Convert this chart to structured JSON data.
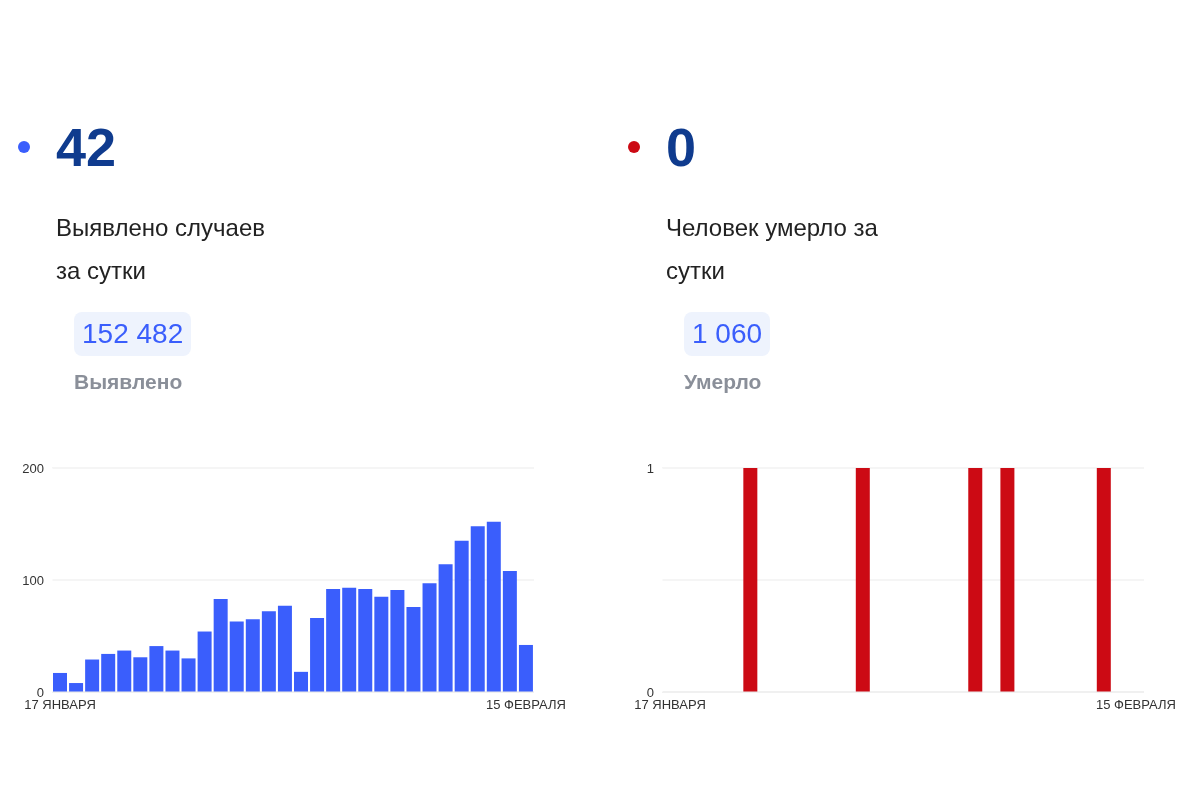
{
  "chart_data": [
    {
      "type": "bar",
      "title": "42",
      "subtitle": "Выявлено случаев за сутки",
      "annotations": [
        "152 482",
        "Выявлено"
      ],
      "categories": [
        "17 ЯНВАРЯ",
        null,
        null,
        null,
        null,
        null,
        null,
        null,
        null,
        null,
        null,
        null,
        null,
        null,
        null,
        null,
        null,
        null,
        null,
        null,
        null,
        null,
        null,
        null,
        null,
        null,
        null,
        null,
        null,
        "15 ФЕВРАЛЯ"
      ],
      "series": [
        {
          "color": "#3a5efc",
          "values": [
            17,
            8,
            29,
            34,
            37,
            31,
            41,
            37,
            30,
            54,
            83,
            63,
            65,
            72,
            77,
            18,
            66,
            92,
            93,
            92,
            85,
            91,
            76,
            97,
            114,
            135,
            148,
            152,
            108,
            42
          ]
        }
      ],
      "ylim": [
        0,
        200
      ],
      "yticks": [
        0,
        100,
        200
      ],
      "grid": "y"
    },
    {
      "type": "bar",
      "title": "0",
      "subtitle": "Человек умерло за сутки",
      "annotations": [
        "1 060",
        "Умерло"
      ],
      "categories": [
        "17 ЯНВАРЯ",
        null,
        null,
        null,
        null,
        null,
        null,
        null,
        null,
        null,
        null,
        null,
        null,
        null,
        null,
        null,
        null,
        null,
        null,
        null,
        null,
        null,
        null,
        null,
        null,
        null,
        null,
        null,
        null,
        "15 ФЕВРАЛЯ"
      ],
      "series": [
        {
          "color": "#cc0a14",
          "values": [
            0,
            0,
            0,
            0,
            0,
            1,
            0,
            0,
            0,
            0,
            0,
            0,
            1,
            0,
            0,
            0,
            0,
            0,
            0,
            1,
            0,
            1,
            0,
            0,
            0,
            0,
            0,
            1,
            0,
            0
          ]
        }
      ],
      "ylim": [
        0,
        1
      ],
      "yticks": [
        0,
        {
          "value": 0.5,
          "label": null
        },
        1
      ],
      "grid": "y"
    }
  ]
}
